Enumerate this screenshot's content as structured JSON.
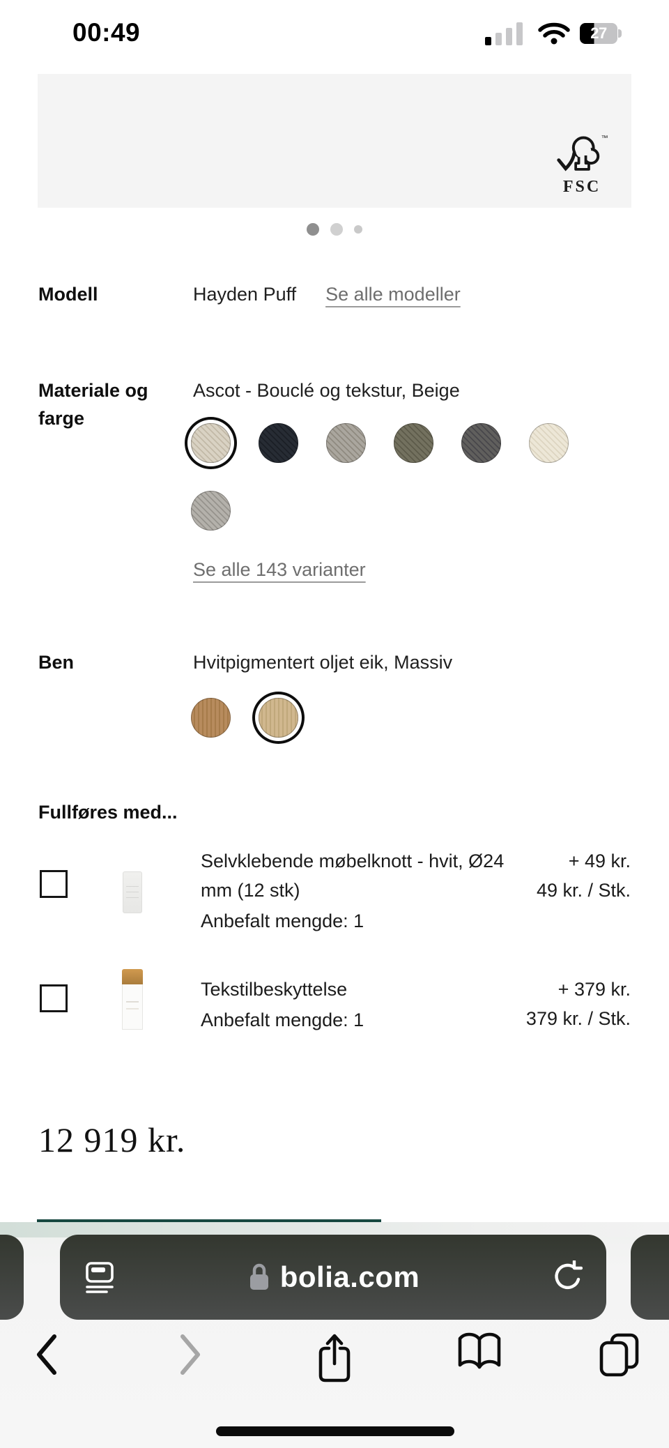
{
  "status_bar": {
    "time": "00:49",
    "battery_percent": "27"
  },
  "product_image": {
    "fsc_label": "FSC"
  },
  "carousel": {
    "dot_count": 3,
    "active_index": 0
  },
  "modell": {
    "label": "Modell",
    "value": "Hayden Puff",
    "link": "Se alle modeller"
  },
  "material": {
    "label": "Materiale og farge",
    "value": "Ascot - Bouclé og tekstur, Beige",
    "link": "Se alle 143 varianter",
    "swatches": [
      {
        "name": "beige-boucle",
        "base": "#d9d2c3",
        "speckle": "#c2b9a7",
        "selected": true
      },
      {
        "name": "moerk-blaa",
        "base": "#272c34",
        "speckle": "#1b1f26",
        "selected": false
      },
      {
        "name": "lys-graa-melert",
        "base": "#aaa69e",
        "speckle": "#8f8a80",
        "selected": false
      },
      {
        "name": "olivengraa",
        "base": "#73715f",
        "speckle": "#5d5b4a",
        "selected": false
      },
      {
        "name": "moerk-graa-tweed",
        "base": "#605f5d",
        "speckle": "#48474b",
        "selected": false
      },
      {
        "name": "krem",
        "base": "#ede7d7",
        "speckle": "#ddd5c1",
        "selected": false
      },
      {
        "name": "graa-vevd",
        "base": "#b4b1ab",
        "speckle": "#96938d",
        "selected": false
      }
    ]
  },
  "ben": {
    "label": "Ben",
    "value": "Hvitpigmentert oljet eik, Massiv",
    "swatches": [
      {
        "name": "oljet-eik",
        "base": "#b78b5d",
        "speckle": "#a67b4a",
        "selected": false,
        "pattern": "wood"
      },
      {
        "name": "hvitpigmentert-oljet-eik",
        "base": "#d0b78e",
        "speckle": "#c0a87b",
        "selected": true,
        "pattern": "wood"
      }
    ]
  },
  "addons": {
    "heading": "Fullføres med...",
    "items": [
      {
        "title": "Selvklebende møbelknott - hvit, Ø24 mm (12 stk)",
        "quantity": "Anbefalt mengde: 1",
        "price_add": "+ 49 kr.",
        "price_unit": "49 kr. / Stk."
      },
      {
        "title": "Tekstilbeskyttelse",
        "quantity": "Anbefalt mengde: 1",
        "price_add": "+ 379 kr.",
        "price_unit": "379 kr. / Stk."
      }
    ]
  },
  "price": {
    "total": "12 919 kr."
  },
  "browser": {
    "url": "bolia.com"
  },
  "colors": {
    "buy_button": "#174840",
    "page_bg": "#ffffff",
    "image_bg": "#f4f4f4"
  }
}
